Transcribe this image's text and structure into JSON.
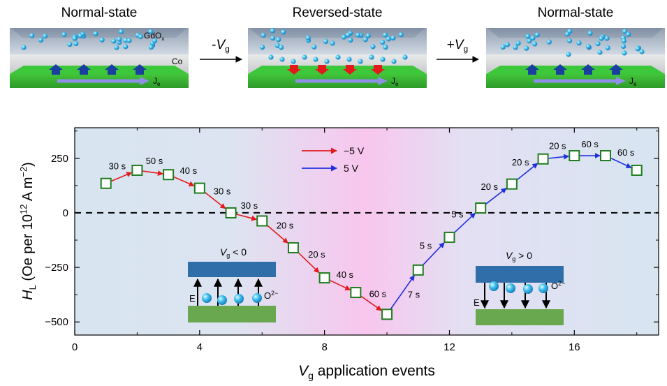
{
  "top_panels": [
    {
      "title": "Normal-state",
      "layer_top": "GdO",
      "layer_top_sub": "x",
      "layer_bottom": "Co",
      "current_label": "J",
      "current_sub": "e"
    },
    {
      "title": "Reversed-state",
      "current_label": "J",
      "current_sub": "e"
    },
    {
      "title": "Normal-state",
      "current_label": "J",
      "current_sub": "e"
    }
  ],
  "arrows": [
    {
      "sign": "-",
      "v": "V",
      "sub": "g"
    },
    {
      "sign": "+",
      "v": "V",
      "sub": "g"
    }
  ],
  "insets": [
    {
      "cond_v": "V",
      "cond_sub": "g",
      "cond_rest": " < 0",
      "field": "E",
      "ion": "O",
      "ion_sup": "2−"
    },
    {
      "cond_v": "V",
      "cond_sub": "g",
      "cond_rest": " > 0",
      "field": "E",
      "ion": "O",
      "ion_sup": "2−"
    }
  ],
  "legend": [
    {
      "label": "−5 V",
      "color": "#e31a1c"
    },
    {
      "label": "5 V",
      "color": "#1f2fe0"
    }
  ],
  "colors": {
    "panel_bg": "#dbe6f0",
    "pink": "#f8c8ee",
    "marker": "#1e7d1e",
    "neg": "#e31a1c",
    "pos": "#1f2fe0",
    "layer_blue": "#2f6ea8",
    "layer_green": "#6aa84f",
    "ion": "#33b5e8"
  },
  "chart_data": {
    "type": "scatter",
    "title": "",
    "xlabel": "V",
    "xlabel_sub": "g",
    "xlabel_rest": " application events",
    "ylabel_italic": "H",
    "ylabel_sub": "L",
    "ylabel_rest": " (Oe per 10",
    "ylabel_sup": "12",
    "ylabel_rest2": " A m",
    "ylabel_sup2": "−2",
    "ylabel_close": ")",
    "xlim": [
      0,
      18.7
    ],
    "ylim": [
      -560,
      390
    ],
    "xticks": [
      0,
      4,
      8,
      12,
      16
    ],
    "yticks": [
      -500,
      -250,
      0,
      250
    ],
    "ytick_labels": [
      "−500",
      "−250",
      "0",
      "250"
    ],
    "grid": false,
    "reference_line": 0,
    "points": [
      {
        "x": 1,
        "y": 135
      },
      {
        "x": 2,
        "y": 195
      },
      {
        "x": 3,
        "y": 175
      },
      {
        "x": 4,
        "y": 113
      },
      {
        "x": 5,
        "y": 0
      },
      {
        "x": 6,
        "y": -37
      },
      {
        "x": 7,
        "y": -160
      },
      {
        "x": 8,
        "y": -298
      },
      {
        "x": 9,
        "y": -365
      },
      {
        "x": 10,
        "y": -465
      },
      {
        "x": 11,
        "y": -262
      },
      {
        "x": 12,
        "y": -112
      },
      {
        "x": 13,
        "y": 22
      },
      {
        "x": 14,
        "y": 132
      },
      {
        "x": 15,
        "y": 247
      },
      {
        "x": 16,
        "y": 262
      },
      {
        "x": 17,
        "y": 262
      },
      {
        "x": 18,
        "y": 195
      }
    ],
    "segments": [
      {
        "from": 1,
        "to": 2,
        "voltage": "-5 V",
        "label": "30 s"
      },
      {
        "from": 2,
        "to": 3,
        "voltage": "-5 V",
        "label": "50 s"
      },
      {
        "from": 3,
        "to": 4,
        "voltage": "-5 V",
        "label": "40 s"
      },
      {
        "from": 4,
        "to": 5,
        "voltage": "-5 V",
        "label": "30 s"
      },
      {
        "from": 5,
        "to": 6,
        "voltage": "-5 V",
        "label": "30 s"
      },
      {
        "from": 6,
        "to": 7,
        "voltage": "-5 V",
        "label": "20 s"
      },
      {
        "from": 7,
        "to": 8,
        "voltage": "-5 V",
        "label": "20 s"
      },
      {
        "from": 8,
        "to": 9,
        "voltage": "-5 V",
        "label": "40 s"
      },
      {
        "from": 9,
        "to": 10,
        "voltage": "-5 V",
        "label": "60 s"
      },
      {
        "from": 10,
        "to": 11,
        "voltage": "5 V",
        "label": "7 s"
      },
      {
        "from": 11,
        "to": 12,
        "voltage": "5 V",
        "label": "5 s"
      },
      {
        "from": 12,
        "to": 13,
        "voltage": "5 V",
        "label": "5 s"
      },
      {
        "from": 13,
        "to": 14,
        "voltage": "5 V",
        "label": "20 s"
      },
      {
        "from": 14,
        "to": 15,
        "voltage": "5 V",
        "label": "20 s"
      },
      {
        "from": 15,
        "to": 16,
        "voltage": "5 V",
        "label": "20 s"
      },
      {
        "from": 16,
        "to": 17,
        "voltage": "5 V",
        "label": "60 s"
      },
      {
        "from": 17,
        "to": 18,
        "voltage": "5 V",
        "label": "60 s"
      }
    ]
  }
}
